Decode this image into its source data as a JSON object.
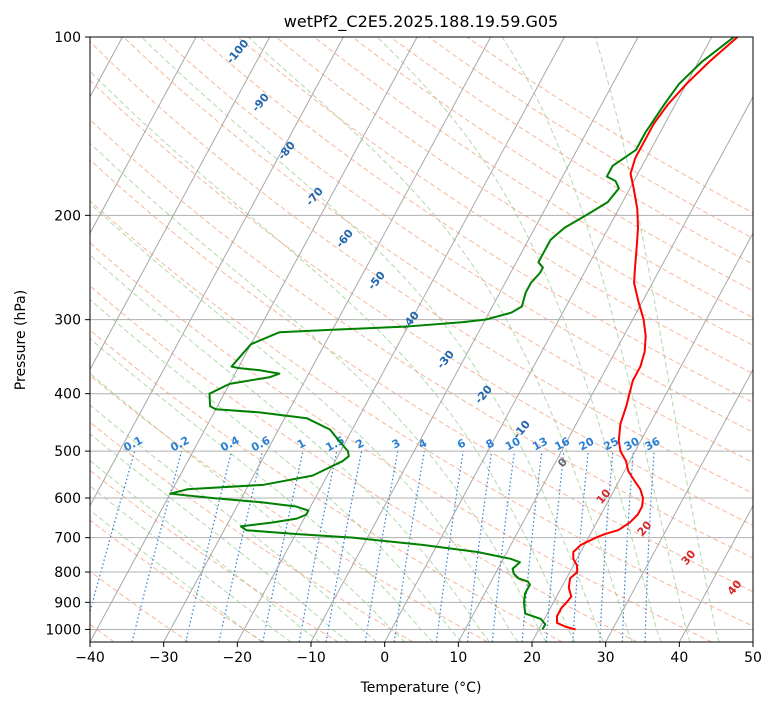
{
  "chart_data": {
    "type": "line",
    "title": "wetPf2_C2E5.2025.188.19.59.G05",
    "xlabel": "Temperature (°C)",
    "ylabel": "Pressure (hPa)",
    "xlim": [
      -40,
      50
    ],
    "ylim": [
      1050,
      100
    ],
    "y_scale": "log",
    "grid": true,
    "x_ticks": [
      -40,
      -30,
      -20,
      -10,
      0,
      10,
      20,
      30,
      40,
      50
    ],
    "y_ticks": [
      100,
      200,
      300,
      400,
      500,
      600,
      700,
      800,
      900,
      1000
    ],
    "colors": {
      "temperature": "#ff0000",
      "dewpoint": "#008000",
      "isotherm": "#999999",
      "dry_adiabat": "#f4a582",
      "moist_adiabat": "#a6d7a0",
      "mixing_ratio": "#2a7fd4",
      "dry_adiabat_label": "#2166ac",
      "isotherm_label": "#d62728"
    },
    "series": [
      {
        "key": "temperature",
        "points": [
          [
            25.0,
            1000
          ],
          [
            23.5,
            990
          ],
          [
            22.0,
            975
          ],
          [
            21.5,
            950
          ],
          [
            21.5,
            920
          ],
          [
            21.8,
            900
          ],
          [
            22.0,
            880
          ],
          [
            21.0,
            850
          ],
          [
            20.5,
            820
          ],
          [
            21.0,
            800
          ],
          [
            20.5,
            780
          ],
          [
            19.5,
            760
          ],
          [
            19.0,
            740
          ],
          [
            19.5,
            720
          ],
          [
            21.0,
            700
          ],
          [
            22.0,
            690
          ],
          [
            23.5,
            680
          ],
          [
            24.5,
            660
          ],
          [
            25.0,
            640
          ],
          [
            25.0,
            620
          ],
          [
            24.5,
            600
          ],
          [
            23.5,
            580
          ],
          [
            22.0,
            560
          ],
          [
            20.5,
            540
          ],
          [
            19.5,
            520
          ],
          [
            18.0,
            500
          ],
          [
            17.0,
            480
          ],
          [
            16.0,
            450
          ],
          [
            15.5,
            420
          ],
          [
            15.0,
            400
          ],
          [
            14.5,
            380
          ],
          [
            14.5,
            360
          ],
          [
            14.0,
            340
          ],
          [
            13.0,
            320
          ],
          [
            11.5,
            300
          ],
          [
            9.5,
            280
          ],
          [
            7.5,
            260
          ],
          [
            6.5,
            245
          ],
          [
            5.5,
            230
          ],
          [
            4.0,
            210
          ],
          [
            2.5,
            195
          ],
          [
            0.5,
            180
          ],
          [
            -1.0,
            170
          ],
          [
            -1.5,
            160
          ],
          [
            -1.5,
            150
          ],
          [
            -1.5,
            140
          ],
          [
            -1.0,
            130
          ],
          [
            0.0,
            120
          ],
          [
            1.5,
            110
          ],
          [
            3.5,
            100
          ]
        ]
      },
      {
        "key": "dewpoint",
        "points": [
          [
            20.5,
            1000
          ],
          [
            20.5,
            980
          ],
          [
            19.5,
            960
          ],
          [
            17.0,
            940
          ],
          [
            16.5,
            920
          ],
          [
            16.0,
            900
          ],
          [
            15.5,
            870
          ],
          [
            15.5,
            840
          ],
          [
            15.0,
            830
          ],
          [
            13.5,
            820
          ],
          [
            12.5,
            805
          ],
          [
            12.0,
            790
          ],
          [
            12.5,
            770
          ],
          [
            11.0,
            760
          ],
          [
            6.0,
            740
          ],
          [
            -2.0,
            720
          ],
          [
            -12.0,
            700
          ],
          [
            -20.0,
            690
          ],
          [
            -27.0,
            680
          ],
          [
            -28.0,
            670
          ],
          [
            -24.0,
            660
          ],
          [
            -21.0,
            650
          ],
          [
            -20.0,
            640
          ],
          [
            -20.0,
            630
          ],
          [
            -22.0,
            620
          ],
          [
            -27.0,
            610
          ],
          [
            -34.0,
            600
          ],
          [
            -40.0,
            590
          ],
          [
            -38.0,
            580
          ],
          [
            -28.0,
            570
          ],
          [
            -22.0,
            550
          ],
          [
            -19.0,
            520
          ],
          [
            -18.5,
            510
          ],
          [
            -19.0,
            500
          ],
          [
            -21.0,
            480
          ],
          [
            -23.0,
            460
          ],
          [
            -27.0,
            440
          ],
          [
            -34.0,
            430
          ],
          [
            -40.0,
            425
          ],
          [
            -41.0,
            420
          ],
          [
            -42.0,
            400
          ],
          [
            -40.0,
            385
          ],
          [
            -35.0,
            375
          ],
          [
            -34.0,
            370
          ],
          [
            -37.0,
            365
          ],
          [
            -40.0,
            362
          ],
          [
            -41.0,
            360
          ],
          [
            -40.0,
            330
          ],
          [
            -37.0,
            315
          ],
          [
            -30.0,
            312
          ],
          [
            -20.0,
            308
          ],
          [
            -13.0,
            303
          ],
          [
            -10.0,
            300
          ],
          [
            -7.0,
            292
          ],
          [
            -6.0,
            285
          ],
          [
            -6.5,
            270
          ],
          [
            -6.5,
            260
          ],
          [
            -6.0,
            250
          ],
          [
            -6.0,
            245
          ],
          [
            -7.0,
            240
          ],
          [
            -7.0,
            230
          ],
          [
            -7.0,
            220
          ],
          [
            -6.0,
            210
          ],
          [
            -4.0,
            200
          ],
          [
            -2.0,
            190
          ],
          [
            -1.5,
            180
          ],
          [
            -2.5,
            175
          ],
          [
            -4.0,
            172
          ],
          [
            -4.0,
            165
          ],
          [
            -3.0,
            160
          ],
          [
            -2.0,
            155
          ],
          [
            -2.0,
            145
          ],
          [
            -1.5,
            130
          ],
          [
            -1.0,
            120
          ],
          [
            0.5,
            110
          ],
          [
            2.5,
            102
          ],
          [
            3.0,
            100
          ]
        ]
      }
    ],
    "dry_adiabat_labels": [
      "-100",
      "-90",
      "-80",
      "-70",
      "-60",
      "-50",
      "-40",
      "-30",
      "-20",
      "-10",
      "0",
      "10",
      "20",
      "30",
      "40"
    ],
    "mixing_ratio_labels": [
      "0.1",
      "0.2",
      "0.4",
      "0.6",
      "1",
      "1.5",
      "2",
      "3",
      "4",
      "6",
      "8",
      "10",
      "13",
      "16",
      "20",
      "25",
      "30",
      "36"
    ]
  }
}
